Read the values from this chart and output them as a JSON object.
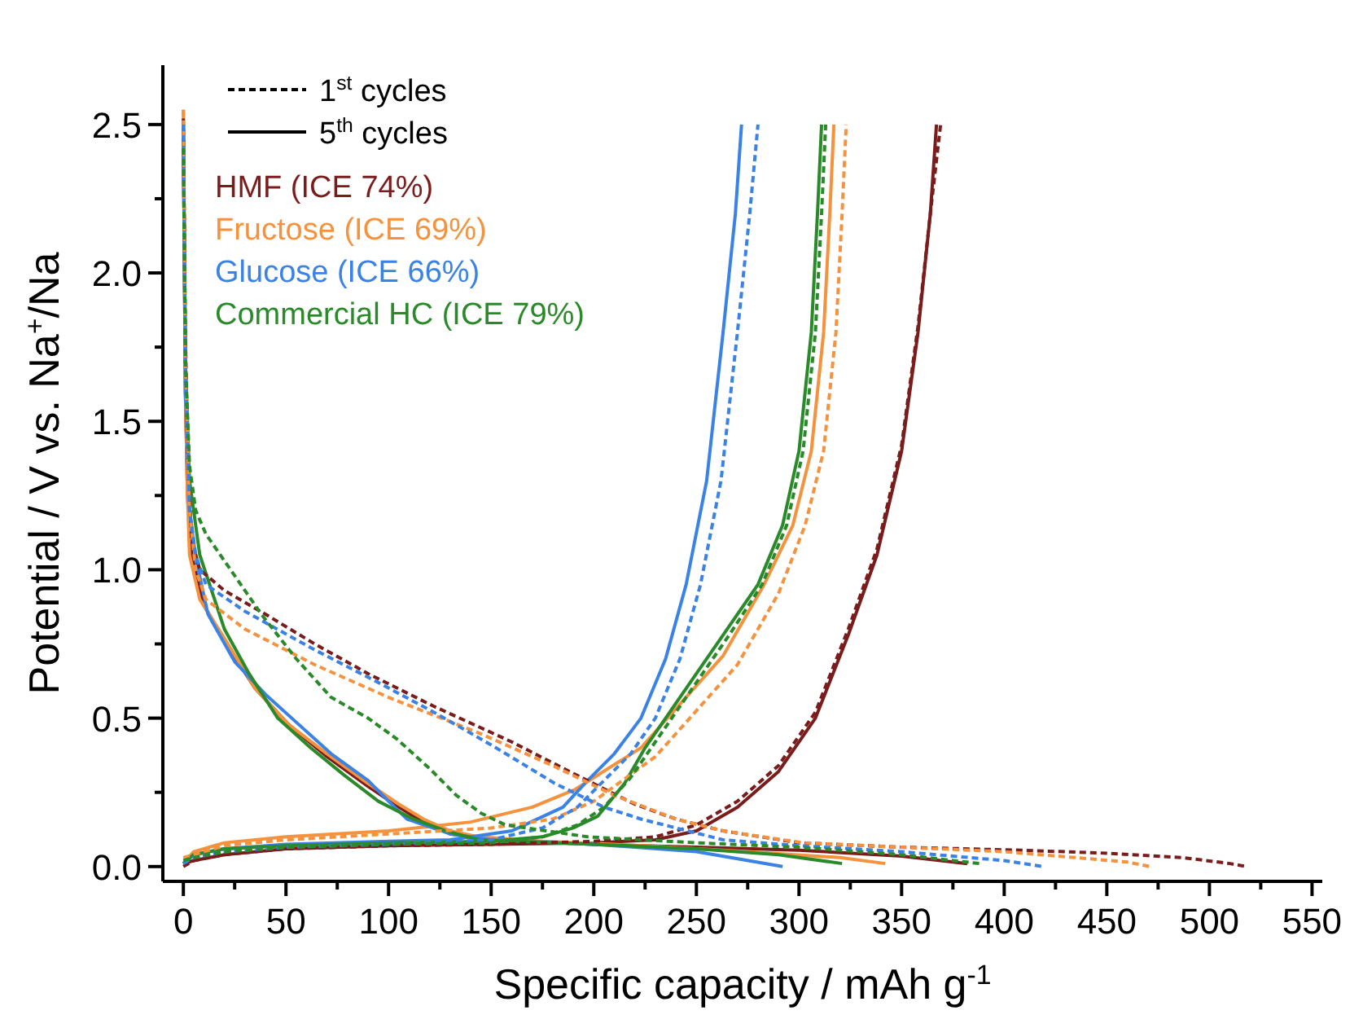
{
  "chart_data": {
    "type": "line",
    "xlabel": "Specific capacity / mAh g$^{-1}$",
    "ylabel": "Potential / V vs. Na$^{+}$/Na",
    "xlim": [
      -10,
      555
    ],
    "ylim": [
      -0.05,
      2.7
    ],
    "xticks": [
      0,
      {
        "value": 25,
        "label": null
      },
      50,
      {
        "value": 75,
        "label": null
      },
      100,
      {
        "value": 125,
        "label": null
      },
      150,
      {
        "value": 175,
        "label": null
      },
      200,
      {
        "value": 225,
        "label": null
      },
      250,
      {
        "value": 275,
        "label": null
      },
      300,
      {
        "value": 325,
        "label": null
      },
      350,
      {
        "value": 375,
        "label": null
      },
      400,
      {
        "value": 425,
        "label": null
      },
      450,
      {
        "value": 475,
        "label": null
      },
      500,
      {
        "value": 525,
        "label": null
      },
      550
    ],
    "yticks": [
      {
        "value": 0,
        "label": "0.0"
      },
      {
        "value": 0.25,
        "label": null
      },
      {
        "value": 0.5,
        "label": "0.5"
      },
      {
        "value": 0.75,
        "label": null
      },
      {
        "value": 1,
        "label": "1.0"
      },
      {
        "value": 1.25,
        "label": null
      },
      {
        "value": 1.5,
        "label": "1.5"
      },
      {
        "value": 1.75,
        "label": null
      },
      {
        "value": 2,
        "label": "2.0"
      },
      {
        "value": 2.25,
        "label": null
      },
      {
        "value": 2.5,
        "label": "2.5"
      }
    ],
    "grid": false,
    "legend": "top left",
    "annotations": [
      "1$^{st}$ cycles",
      "5$^{th}$ cycles"
    ],
    "series": [
      {
        "color": "#7b1c1c",
        "line_style": "dashed",
        "x": [
          0,
          1,
          2,
          4,
          8,
          20,
          40,
          64,
          90,
          122,
          160,
          191,
          220,
          240,
          263,
          300,
          350,
          408,
          450,
          487,
          510,
          518
        ],
        "values": [
          2.52,
          1.8,
          1.4,
          1.1,
          1.0,
          0.93,
          0.85,
          0.75,
          0.65,
          0.54,
          0.42,
          0.31,
          0.21,
          0.16,
          0.12,
          0.08,
          0.065,
          0.055,
          0.045,
          0.03,
          0.01,
          0.0
        ]
      },
      {
        "color": "#7b1c1c",
        "line_style": "dashed",
        "x": [
          0,
          5,
          20,
          50,
          100,
          150,
          200,
          230,
          250,
          270,
          290,
          308,
          324,
          338,
          350,
          358,
          364,
          369
        ],
        "values": [
          0.0,
          0.02,
          0.04,
          0.06,
          0.07,
          0.075,
          0.085,
          0.1,
          0.14,
          0.22,
          0.34,
          0.52,
          0.8,
          1.07,
          1.42,
          1.82,
          2.2,
          2.5
        ]
      },
      {
        "color": "#f5923e",
        "line_style": "dashed",
        "x": [
          0,
          1,
          3,
          6,
          11,
          30,
          64,
          100,
          144,
          180,
          210,
          240,
          263,
          302,
          350,
          400,
          435,
          460,
          471
        ],
        "values": [
          2.55,
          1.7,
          1.2,
          1.0,
          0.9,
          0.8,
          0.68,
          0.57,
          0.45,
          0.34,
          0.24,
          0.16,
          0.12,
          0.08,
          0.065,
          0.05,
          0.03,
          0.015,
          0.0
        ]
      },
      {
        "color": "#f5923e",
        "line_style": "dashed",
        "x": [
          0,
          5,
          20,
          50,
          100,
          150,
          180,
          200,
          230,
          270,
          290,
          303,
          312,
          318,
          321,
          323
        ],
        "values": [
          0.03,
          0.04,
          0.07,
          0.09,
          0.11,
          0.13,
          0.16,
          0.22,
          0.37,
          0.68,
          0.92,
          1.15,
          1.4,
          1.8,
          2.2,
          2.5
        ]
      },
      {
        "color": "#3a82e6",
        "line_style": "dashed",
        "x": [
          0,
          1,
          3,
          6,
          11,
          30,
          64,
          95,
          122,
          150,
          181,
          205,
          223,
          263,
          300,
          350,
          400,
          419
        ],
        "values": [
          2.5,
          1.7,
          1.2,
          1.05,
          0.95,
          0.86,
          0.73,
          0.62,
          0.52,
          0.41,
          0.28,
          0.2,
          0.16,
          0.09,
          0.07,
          0.05,
          0.02,
          0.0
        ]
      },
      {
        "color": "#3a82e6",
        "line_style": "dashed",
        "x": [
          0,
          5,
          20,
          50,
          100,
          150,
          175,
          192,
          205,
          218,
          230,
          242,
          252,
          262,
          270,
          276,
          280
        ],
        "values": [
          0.01,
          0.03,
          0.05,
          0.065,
          0.075,
          0.09,
          0.13,
          0.2,
          0.29,
          0.38,
          0.5,
          0.7,
          0.95,
          1.3,
          1.8,
          2.2,
          2.5
        ]
      },
      {
        "color": "#2a8a2a",
        "line_style": "dashed",
        "x": [
          0,
          1,
          3,
          6,
          11,
          25,
          38,
          55,
          72,
          90,
          104,
          120,
          133,
          145,
          157,
          197,
          250,
          300,
          350,
          388
        ],
        "values": [
          2.42,
          1.7,
          1.35,
          1.2,
          1.12,
          0.98,
          0.85,
          0.7,
          0.57,
          0.5,
          0.43,
          0.33,
          0.24,
          0.18,
          0.14,
          0.1,
          0.08,
          0.065,
          0.04,
          0.01
        ]
      },
      {
        "color": "#2a8a2a",
        "line_style": "dashed",
        "x": [
          0,
          5,
          20,
          50,
          100,
          150,
          175,
          192,
          205,
          218,
          230,
          248,
          266,
          282,
          294,
          302,
          308,
          311,
          313
        ],
        "values": [
          0.02,
          0.03,
          0.05,
          0.065,
          0.075,
          0.08,
          0.1,
          0.14,
          0.2,
          0.3,
          0.42,
          0.6,
          0.78,
          0.95,
          1.15,
          1.4,
          1.8,
          2.2,
          2.5
        ]
      },
      {
        "color": "#7b1c1c",
        "line_style": "solid",
        "x": [
          0,
          1,
          2,
          4,
          10,
          20,
          35,
          51,
          70,
          90,
          105,
          117,
          130,
          150,
          200,
          250,
          300,
          350,
          382
        ],
        "values": [
          2.5,
          1.6,
          1.25,
          1.05,
          0.88,
          0.76,
          0.6,
          0.48,
          0.37,
          0.27,
          0.2,
          0.15,
          0.11,
          0.09,
          0.075,
          0.065,
          0.055,
          0.035,
          0.01
        ]
      },
      {
        "name": "HMF (ICE 74%)",
        "color": "#7b1c1c",
        "line_style": "solid",
        "x": [
          0,
          5,
          20,
          50,
          100,
          150,
          200,
          230,
          250,
          270,
          290,
          308,
          324,
          338,
          350,
          358,
          364,
          367
        ],
        "values": [
          0.01,
          0.02,
          0.04,
          0.06,
          0.07,
          0.075,
          0.08,
          0.09,
          0.12,
          0.2,
          0.32,
          0.5,
          0.78,
          1.05,
          1.4,
          1.8,
          2.2,
          2.5
        ]
      },
      {
        "color": "#f5923e",
        "line_style": "solid",
        "x": [
          0,
          1,
          2,
          3,
          8,
          19,
          35,
          51,
          70,
          90,
          105,
          117,
          130,
          144,
          175,
          225,
          275,
          320,
          342
        ],
        "values": [
          2.55,
          1.6,
          1.25,
          1.05,
          0.9,
          0.78,
          0.6,
          0.48,
          0.38,
          0.28,
          0.21,
          0.16,
          0.12,
          0.1,
          0.085,
          0.07,
          0.05,
          0.03,
          0.01
        ]
      },
      {
        "name": "Fructose (ICE 69%)",
        "color": "#f5923e",
        "line_style": "solid",
        "x": [
          0,
          5,
          20,
          50,
          100,
          140,
          170,
          191,
          223,
          263,
          283,
          297,
          306,
          312,
          315,
          317
        ],
        "values": [
          0.01,
          0.05,
          0.08,
          0.1,
          0.12,
          0.15,
          0.2,
          0.26,
          0.4,
          0.71,
          0.95,
          1.15,
          1.4,
          1.8,
          2.2,
          2.5
        ]
      },
      {
        "color": "#3a82e6",
        "line_style": "solid",
        "x": [
          0,
          1,
          3,
          6,
          12,
          25,
          40,
          56,
          72,
          90,
          100,
          109,
          130,
          150,
          200,
          250,
          292
        ],
        "values": [
          2.5,
          1.6,
          1.2,
          1.04,
          0.85,
          0.69,
          0.58,
          0.48,
          0.38,
          0.29,
          0.22,
          0.16,
          0.11,
          0.09,
          0.075,
          0.05,
          0.0
        ]
      },
      {
        "name": "Glucose (ICE 66%)",
        "color": "#3a82e6",
        "line_style": "solid",
        "x": [
          0,
          5,
          20,
          50,
          100,
          130,
          160,
          185,
          197,
          210,
          223,
          235,
          245,
          255,
          263,
          269,
          272
        ],
        "values": [
          0.01,
          0.04,
          0.06,
          0.075,
          0.085,
          0.09,
          0.12,
          0.2,
          0.29,
          0.38,
          0.5,
          0.7,
          0.95,
          1.3,
          1.8,
          2.2,
          2.5
        ]
      },
      {
        "color": "#2a8a2a",
        "line_style": "solid",
        "x": [
          0,
          1,
          3,
          8,
          20,
          32,
          46,
          62,
          78,
          95,
          112,
          128,
          144,
          200,
          250,
          290,
          321
        ],
        "values": [
          2.42,
          1.7,
          1.3,
          1.05,
          0.8,
          0.65,
          0.5,
          0.4,
          0.31,
          0.22,
          0.16,
          0.12,
          0.09,
          0.075,
          0.06,
          0.04,
          0.01
        ]
      },
      {
        "name": "Commercial HC (ICE 79%)",
        "color": "#2a8a2a",
        "line_style": "solid",
        "x": [
          0,
          5,
          20,
          50,
          100,
          150,
          175,
          190,
          202,
          215,
          225,
          245,
          263,
          280,
          292,
          300,
          306,
          309,
          311
        ],
        "values": [
          0.01,
          0.04,
          0.06,
          0.07,
          0.08,
          0.085,
          0.1,
          0.13,
          0.17,
          0.28,
          0.4,
          0.6,
          0.78,
          0.95,
          1.15,
          1.4,
          1.8,
          2.2,
          2.5
        ]
      }
    ]
  }
}
